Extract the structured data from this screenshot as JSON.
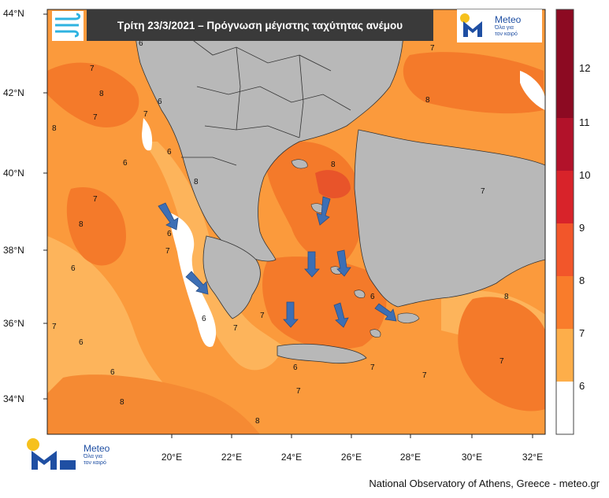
{
  "title": "Τρίτη 23/3/2021 – Πρόγνωση μέγιστης ταχύτητας ανέμου",
  "branding": {
    "name": "Meteo",
    "tagline_line1": "Όλα για",
    "tagline_line2": "τον καιρό",
    "credit": "National Observatory of Athens, Greece - meteo.gr"
  },
  "latitude_labels": [
    "44°N",
    "42°N",
    "40°N",
    "38°N",
    "36°N",
    "34°N"
  ],
  "longitude_labels": [
    "20°E",
    "22°E",
    "24°E",
    "26°E",
    "28°E",
    "30°E",
    "32°E"
  ],
  "colorbar": {
    "labels": [
      "6",
      "7",
      "8",
      "9",
      "10",
      "11",
      "12"
    ],
    "colors": [
      "#ffffff",
      "#fdae4a",
      "#f97c2b",
      "#f2562a",
      "#d8232a",
      "#b2122a",
      "#8c0a22"
    ]
  },
  "contour_labels": [
    "6",
    "7",
    "8",
    "6",
    "7",
    "8",
    "7",
    "6",
    "6",
    "7",
    "8",
    "6",
    "8",
    "6",
    "7",
    "6",
    "7",
    "8",
    "6",
    "7",
    "6",
    "7",
    "8",
    "7",
    "6",
    "7",
    "8",
    "7",
    "8",
    "7",
    "6",
    "7",
    "8",
    "7"
  ],
  "wind_arrow_count": 9
}
